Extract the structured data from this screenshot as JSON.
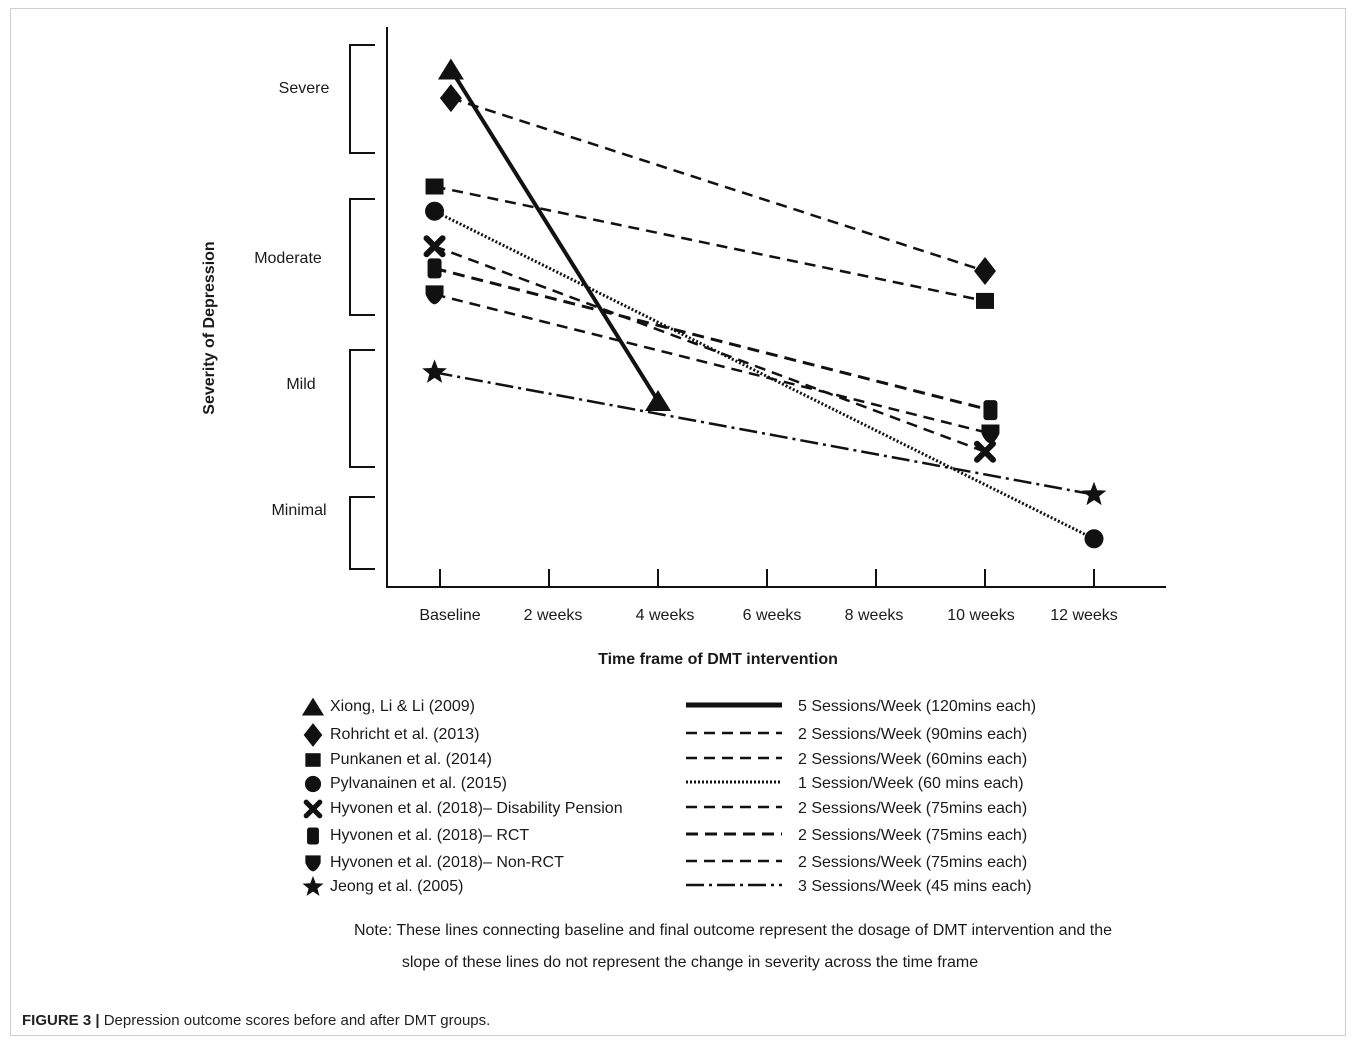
{
  "chart_data": {
    "type": "line",
    "xlabel": "Time frame of DMT intervention",
    "ylabel": "Severity of Depression",
    "categories": [
      "Baseline",
      "2 weeks",
      "4 weeks",
      "6 weeks",
      "8 weeks",
      "10 weeks",
      "12 weeks"
    ],
    "severity_levels": [
      "Severe",
      "Moderate",
      "Mild",
      "Minimal"
    ],
    "grid": false,
    "legend_position": "bottom",
    "series": [
      {
        "name": "Xiong, Li & Li (2009)",
        "marker": "triangle",
        "line_style": "solid-thick",
        "dosage": "5 Sessions/Week (120mins each)",
        "points": [
          [
            0.2,
            3.85
          ],
          [
            4,
            1.3
          ]
        ]
      },
      {
        "name": "Rohricht et al. (2013)",
        "marker": "diamond",
        "line_style": "dashed",
        "dosage": "2 Sessions/Week (90mins each)",
        "points": [
          [
            0.2,
            3.63
          ],
          [
            10,
            2.3
          ]
        ]
      },
      {
        "name": "Punkanen et al. (2014)",
        "marker": "square",
        "line_style": "dashed",
        "dosage": "2 Sessions/Week (60mins each)",
        "points": [
          [
            -0.1,
            2.95
          ],
          [
            10,
            2.07
          ]
        ]
      },
      {
        "name": "Pylvanainen et al. (2015)",
        "marker": "circle",
        "line_style": "dotted",
        "dosage": "1 Session/Week (60 mins each)",
        "points": [
          [
            -0.1,
            2.76
          ],
          [
            12,
            0.24
          ]
        ]
      },
      {
        "name": "Hyvonen et al. (2018)– Disability Pension",
        "marker": "x-cross",
        "line_style": "dashed",
        "dosage": "2 Sessions/Week (75mins each)",
        "points": [
          [
            -0.1,
            2.49
          ],
          [
            10,
            0.91
          ]
        ]
      },
      {
        "name": "Hyvonen et al. (2018)– RCT",
        "marker": "cylinder",
        "line_style": "dashed-thick",
        "dosage": "2 Sessions/Week (75mins each)",
        "points": [
          [
            -0.1,
            2.32
          ],
          [
            10.1,
            1.23
          ]
        ]
      },
      {
        "name": "Hyvonen et al. (2018)– Non-RCT",
        "marker": "shield",
        "line_style": "dashed",
        "dosage": "2 Sessions/Week (75mins each)",
        "points": [
          [
            -0.1,
            2.12
          ],
          [
            10.1,
            1.05
          ]
        ]
      },
      {
        "name": "Jeong et al. (2005)",
        "marker": "star",
        "line_style": "dash-dot",
        "dosage": "3 Sessions/Week (45 mins each)",
        "points": [
          [
            -0.1,
            1.52
          ],
          [
            12,
            0.58
          ]
        ]
      }
    ],
    "note_lines": [
      "Note: These lines connecting baseline and final outcome represent the dosage of DMT intervention and the",
      "slope of these lines do not represent the change in severity across the time frame"
    ]
  },
  "caption": {
    "label": "FIGURE 3 |",
    "text": " Depression outcome scores before and after DMT groups."
  },
  "colors": {
    "ink": "#111111",
    "frame": "#cfcfcf"
  }
}
